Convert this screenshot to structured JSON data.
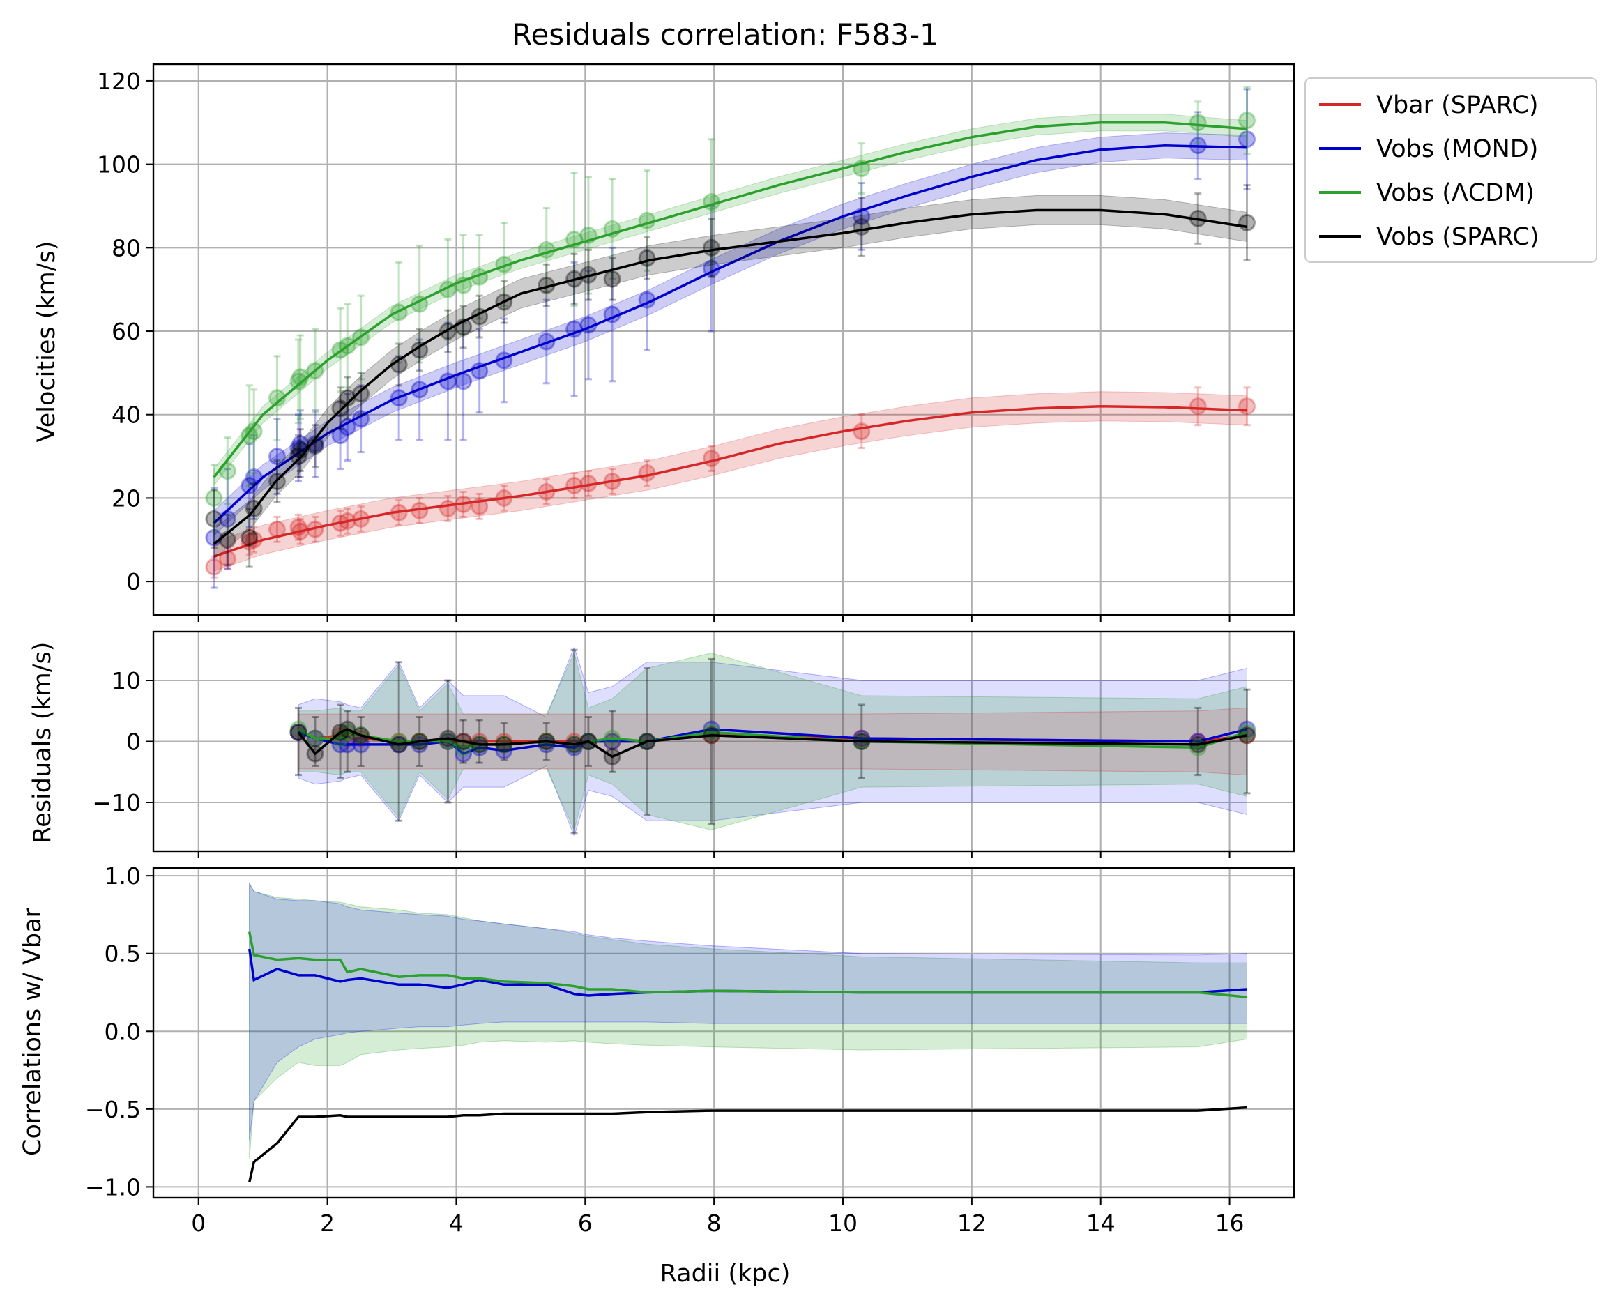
{
  "chart_data": [
    {
      "type": "line",
      "panel": "velocities",
      "title": "Residuals correlation: F583-1",
      "xlabel": "",
      "ylabel": "Velocities (km/s)",
      "xlim": [
        -0.7,
        17.0
      ],
      "ylim": [
        -8,
        124
      ],
      "xticks": [
        0,
        2,
        4,
        6,
        8,
        10,
        12,
        14,
        16
      ],
      "yticks": [
        0,
        20,
        40,
        60,
        80,
        100,
        120
      ],
      "grid": true,
      "legend_position": "outside-right",
      "radii_points": [
        0.24,
        0.45,
        0.79,
        0.86,
        1.22,
        1.55,
        1.58,
        1.81,
        2.2,
        2.31,
        2.52,
        3.11,
        3.43,
        3.87,
        4.11,
        4.36,
        4.74,
        5.4,
        5.83,
        6.05,
        6.42,
        6.96,
        7.96,
        10.29,
        15.51,
        16.27
      ],
      "series": [
        {
          "name": "Vbar (SPARC)",
          "color": "#d62728",
          "values": [
            3.5,
            5.5,
            9.5,
            10.0,
            12.5,
            13.0,
            12.0,
            12.5,
            14.0,
            14.5,
            15.0,
            16.5,
            17.0,
            17.5,
            18.5,
            18.0,
            20.0,
            21.5,
            23.0,
            23.5,
            24.0,
            26.0,
            29.5,
            36.0,
            42.0,
            42.0
          ],
          "err": [
            2.5,
            2.5,
            3,
            3,
            3,
            3,
            3,
            3,
            3,
            3,
            3,
            3,
            3,
            3,
            3,
            3,
            3,
            3,
            3,
            3,
            3,
            3,
            3,
            4,
            4.5,
            4.5
          ],
          "curve_x": [
            0.24,
            1,
            2,
            3,
            4,
            5,
            6,
            7,
            8,
            9,
            10,
            11,
            12,
            13,
            14,
            15,
            16.27
          ],
          "curve_y": [
            6,
            10,
            13.5,
            16.5,
            18.5,
            20.5,
            23,
            25.5,
            29,
            33,
            36,
            38.5,
            40.5,
            41.5,
            42,
            41.8,
            41
          ],
          "band": 3.5
        },
        {
          "name": "Vobs (MOND)",
          "color": "#0000cc",
          "values": [
            10.5,
            15,
            23,
            25,
            30,
            32,
            33,
            33,
            35,
            37,
            39,
            44,
            46,
            48,
            48,
            50.5,
            53,
            57.5,
            60.5,
            61.5,
            64,
            67.5,
            75,
            87.5,
            104.5,
            106
          ],
          "err": [
            12,
            12,
            10,
            10,
            9,
            8,
            8,
            8,
            8,
            8,
            8,
            10,
            12,
            14,
            14,
            10,
            10,
            10,
            16,
            13,
            16,
            12,
            15,
            8,
            8,
            12
          ],
          "curve_x": [
            0.24,
            1,
            2,
            3,
            4,
            5,
            6,
            7,
            8,
            9,
            10,
            11,
            12,
            13,
            14,
            15,
            16.27
          ],
          "curve_y": [
            14,
            25,
            35.5,
            43.5,
            49.5,
            55,
            60.5,
            67,
            74.5,
            81.5,
            87.5,
            92.5,
            97,
            101,
            103.5,
            104.5,
            104
          ],
          "band": 3
        },
        {
          "name": "Vobs (ΛCDM)",
          "color": "#2ca02c",
          "values": [
            20,
            26.5,
            35,
            36,
            44,
            48,
            49,
            50.5,
            55.5,
            56.5,
            58.5,
            64.5,
            66.5,
            70,
            71,
            73,
            76,
            79.5,
            82,
            83,
            84.5,
            86.5,
            91,
            99,
            110,
            110.5
          ],
          "err": [
            8,
            8,
            12,
            10,
            10,
            10,
            10,
            10,
            10,
            10,
            10,
            12,
            14,
            12,
            12,
            10,
            10,
            10,
            16,
            14,
            12,
            12,
            15,
            6,
            5,
            8
          ],
          "curve_x": [
            0.24,
            1,
            2,
            3,
            4,
            5,
            6,
            7,
            8,
            9,
            10,
            11,
            12,
            13,
            14,
            15,
            16.27
          ],
          "curve_y": [
            25,
            40,
            53,
            64,
            71.5,
            77,
            81.5,
            86,
            90.5,
            95,
            99,
            103,
            106.5,
            109,
            110,
            110,
            108.5
          ],
          "band": 2
        },
        {
          "name": "Vobs (SPARC)",
          "color": "#000000",
          "values": [
            15,
            10,
            10.5,
            17.5,
            24,
            30,
            31.5,
            32.5,
            41.5,
            44,
            45,
            52,
            55.5,
            60,
            61,
            63.5,
            67,
            71,
            72.5,
            73.5,
            72.5,
            77.5,
            80,
            85,
            87,
            86
          ],
          "err": [
            7,
            6,
            7,
            6,
            5,
            5,
            5,
            5,
            5,
            5,
            5,
            5,
            5,
            5,
            5,
            5,
            5,
            5,
            6,
            6,
            5,
            5,
            7,
            7,
            6,
            9
          ],
          "curve_x": [
            0.24,
            0.8,
            1.2,
            1.6,
            2,
            2.5,
            3,
            3.5,
            4,
            5,
            6,
            7,
            8,
            9,
            10,
            11,
            12,
            13,
            14,
            15,
            16.27
          ],
          "curve_y": [
            9,
            16,
            24,
            30,
            38,
            45.5,
            52,
            57,
            61.5,
            69,
            73,
            77,
            79.5,
            81.5,
            83.5,
            86,
            88,
            89,
            89,
            88,
            85
          ],
          "band": 3.5
        }
      ]
    },
    {
      "type": "line",
      "panel": "residuals",
      "xlabel": "",
      "ylabel": "Residuals (km/s)",
      "xlim": [
        -0.7,
        17.0
      ],
      "ylim": [
        -18,
        18
      ],
      "yticks": [
        10,
        0,
        -10
      ],
      "ytick_labels": [
        "10",
        "0",
        "−10"
      ],
      "grid": true,
      "x": [
        1.55,
        1.81,
        2.2,
        2.31,
        2.52,
        3.11,
        3.43,
        3.87,
        4.11,
        4.36,
        4.74,
        5.4,
        5.83,
        6.05,
        6.42,
        6.96,
        7.96,
        10.29,
        15.51,
        16.27
      ],
      "series": [
        {
          "name": "Vbar (SPARC)",
          "color": "#d62728",
          "values": [
            1.5,
            0.5,
            1.0,
            0.5,
            0.5,
            0,
            0,
            0,
            0,
            0,
            0,
            0,
            0,
            0,
            0,
            0,
            1,
            0.5,
            0,
            1
          ]
        },
        {
          "name": "Vobs (MOND)",
          "color": "#0000cc",
          "values": [
            1.5,
            0.5,
            -0.5,
            -0.5,
            -0.5,
            -0.5,
            -0.5,
            0,
            -2,
            -1,
            -1.5,
            -0.5,
            -1,
            0,
            0,
            0,
            2,
            0.5,
            0,
            2
          ]
        },
        {
          "name": "Vobs (ΛCDM)",
          "color": "#2ca02c",
          "values": [
            2,
            0.5,
            0.5,
            1.5,
            1,
            0,
            0,
            0,
            -1,
            -0.5,
            -0.5,
            0,
            -0.5,
            0,
            0.5,
            0,
            1.5,
            0,
            -1,
            1.5
          ]
        },
        {
          "name": "Vobs (SPARC)",
          "color": "#000000",
          "values": [
            1.5,
            -2,
            1.5,
            2,
            1,
            -0.5,
            0,
            0.5,
            0,
            -0.5,
            -0.5,
            0,
            -0.5,
            0,
            -2.5,
            0,
            1,
            0,
            -0.5,
            1
          ]
        }
      ],
      "errbar_half": [
        5.5,
        4,
        6,
        5,
        4,
        13,
        4,
        10,
        3.5,
        3.5,
        3,
        3,
        15,
        4,
        5,
        12,
        13.5,
        6,
        5.5,
        8.5
      ],
      "band_mond_half": [
        6,
        7,
        6.5,
        6,
        5.5,
        13,
        5.5,
        10,
        7.5,
        7.5,
        7.5,
        4,
        15.5,
        8,
        9,
        13,
        13,
        10,
        10,
        12
      ],
      "band_lcdm_half": [
        5,
        5,
        5.5,
        5,
        5,
        12.5,
        5,
        9.5,
        4.5,
        4.5,
        4.5,
        4.5,
        14.5,
        5.5,
        7,
        12,
        14.5,
        7.5,
        7,
        9
      ],
      "band_vbar_half": [
        4.5,
        4.5,
        4.5,
        4.5,
        4.5,
        4.5,
        4.5,
        4.5,
        4.5,
        4.5,
        4.5,
        4.5,
        4.5,
        4.5,
        4.5,
        4.5,
        4.5,
        4.5,
        5,
        5.5
      ]
    },
    {
      "type": "line",
      "panel": "correlations",
      "xlabel": "Radii (kpc)",
      "ylabel": "Correlations w/ Vbar",
      "xlim": [
        -0.7,
        17.0
      ],
      "ylim": [
        -1.07,
        1.05
      ],
      "xticks": [
        0,
        2,
        4,
        6,
        8,
        10,
        12,
        14,
        16
      ],
      "yticks": [
        1.0,
        0.5,
        0.0,
        -0.5,
        -1.0
      ],
      "ytick_labels": [
        "1.0",
        "0.5",
        "0.0",
        "−0.5",
        "−1.0"
      ],
      "grid": true,
      "x": [
        0.79,
        0.86,
        1.22,
        1.55,
        1.81,
        2.2,
        2.31,
        2.52,
        3.11,
        3.43,
        3.87,
        4.11,
        4.36,
        4.74,
        5.4,
        5.83,
        6.05,
        6.42,
        6.96,
        7.96,
        10.29,
        15.51,
        16.27
      ],
      "series": [
        {
          "name": "Vobs (MOND)",
          "color": "#0000cc",
          "values": [
            0.53,
            0.33,
            0.4,
            0.36,
            0.36,
            0.32,
            0.33,
            0.34,
            0.3,
            0.3,
            0.28,
            0.3,
            0.33,
            0.3,
            0.3,
            0.24,
            0.23,
            0.24,
            0.25,
            0.26,
            0.25,
            0.25,
            0.27
          ]
        },
        {
          "name": "Vobs (ΛCDM)",
          "color": "#2ca02c",
          "values": [
            0.64,
            0.49,
            0.46,
            0.47,
            0.46,
            0.46,
            0.38,
            0.4,
            0.35,
            0.36,
            0.36,
            0.34,
            0.34,
            0.32,
            0.31,
            0.29,
            0.27,
            0.27,
            0.25,
            0.26,
            0.25,
            0.25,
            0.22
          ]
        },
        {
          "name": "Vobs (SPARC)",
          "color": "#000000",
          "values": [
            -0.97,
            -0.84,
            -0.72,
            -0.55,
            -0.55,
            -0.54,
            -0.55,
            -0.55,
            -0.55,
            -0.55,
            -0.55,
            -0.54,
            -0.54,
            -0.53,
            -0.53,
            -0.53,
            -0.53,
            -0.53,
            -0.52,
            -0.51,
            -0.51,
            -0.51,
            -0.49
          ]
        }
      ],
      "band_mond_upper": [
        0.95,
        0.9,
        0.85,
        0.84,
        0.84,
        0.82,
        0.8,
        0.78,
        0.76,
        0.75,
        0.74,
        0.72,
        0.71,
        0.69,
        0.66,
        0.64,
        0.62,
        0.6,
        0.58,
        0.55,
        0.5,
        0.49,
        0.5
      ],
      "band_mond_lower": [
        -0.7,
        -0.45,
        -0.2,
        -0.1,
        -0.05,
        -0.02,
        -0.01,
        0.0,
        0.02,
        0.03,
        0.03,
        0.04,
        0.05,
        0.06,
        0.06,
        0.06,
        0.06,
        0.06,
        0.06,
        0.05,
        0.05,
        0.05,
        0.05
      ],
      "band_lcdm_upper": [
        0.95,
        0.9,
        0.86,
        0.85,
        0.84,
        0.83,
        0.82,
        0.8,
        0.78,
        0.76,
        0.75,
        0.73,
        0.71,
        0.69,
        0.66,
        0.63,
        0.61,
        0.59,
        0.56,
        0.53,
        0.48,
        0.44,
        0.44
      ],
      "band_lcdm_lower": [
        -0.82,
        -0.45,
        -0.3,
        -0.2,
        -0.22,
        -0.22,
        -0.2,
        -0.15,
        -0.12,
        -0.11,
        -0.1,
        -0.09,
        -0.07,
        -0.06,
        -0.07,
        -0.06,
        -0.07,
        -0.08,
        -0.09,
        -0.1,
        -0.12,
        -0.1,
        -0.05
      ]
    }
  ]
}
